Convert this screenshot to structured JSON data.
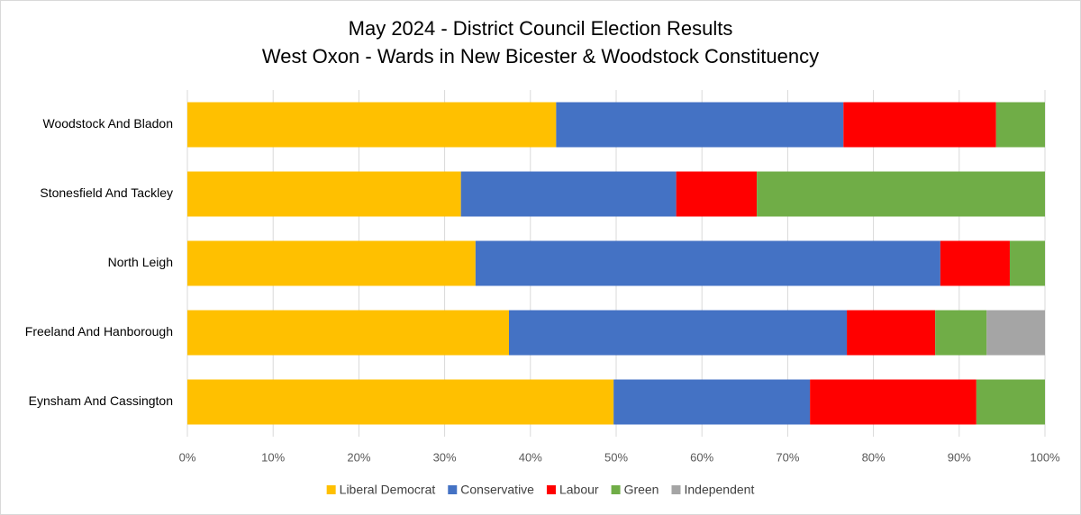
{
  "chart_data": {
    "type": "stacked-bar-horizontal",
    "title": "May 2024 - District Council Election Results",
    "subtitle": "West Oxon - Wards in New Bicester & Woodstock Constituency",
    "categories": [
      "Woodstock And Bladon",
      "Stonesfield And Tackley",
      "North Leigh",
      "Freeland And Hanborough",
      "Eynsham And Cassington"
    ],
    "series": [
      {
        "name": "Liberal Democrat",
        "color": "#ffc000",
        "values": [
          43.0,
          31.9,
          33.6,
          37.5,
          49.7
        ]
      },
      {
        "name": "Conservative",
        "color": "#4472c4",
        "values": [
          33.5,
          25.1,
          54.2,
          39.4,
          22.9
        ]
      },
      {
        "name": "Labour",
        "color": "#ff0000",
        "values": [
          17.8,
          9.4,
          8.1,
          10.3,
          19.4
        ]
      },
      {
        "name": "Green",
        "color": "#70ad47",
        "values": [
          5.7,
          33.6,
          4.1,
          6.0,
          8.0
        ]
      },
      {
        "name": "Independent",
        "color": "#a5a5a5",
        "values": [
          0,
          0,
          0,
          6.8,
          0
        ]
      }
    ],
    "xlim": [
      0,
      100
    ],
    "xticks": [
      {
        "value": 0,
        "label": "0%"
      },
      {
        "value": 10,
        "label": "10%"
      },
      {
        "value": 20,
        "label": "20%"
      },
      {
        "value": 30,
        "label": "30%"
      },
      {
        "value": 40,
        "label": "40%"
      },
      {
        "value": 50,
        "label": "50%"
      },
      {
        "value": 60,
        "label": "60%"
      },
      {
        "value": 70,
        "label": "70%"
      },
      {
        "value": 80,
        "label": "80%"
      },
      {
        "value": 90,
        "label": "90%"
      },
      {
        "value": 100,
        "label": "100%"
      }
    ],
    "grid": true,
    "legend": "bottom"
  }
}
